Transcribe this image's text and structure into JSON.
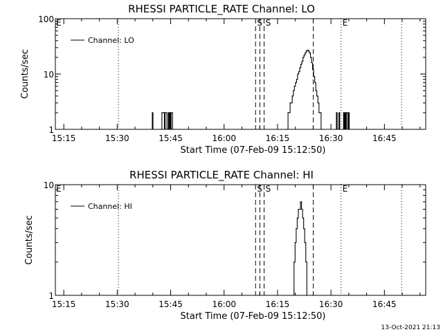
{
  "footer": {
    "timestamp": "13-Oct-2021 21:13"
  },
  "chart_data": [
    {
      "type": "line",
      "title": "RHESSI PARTICLE_RATE Channel: LO",
      "xlabel": "Start Time (07-Feb-09 15:12:50)",
      "ylabel": "Counts/sec",
      "yscale": "log",
      "ylim": [
        1,
        100
      ],
      "y_ticks": [
        {
          "value": 1,
          "label": "1"
        },
        {
          "value": 10,
          "label": "10"
        },
        {
          "value": 100,
          "label": "100"
        }
      ],
      "x_tick_labels": [
        "15:15",
        "15:30",
        "15:45",
        "16:00",
        "16:15",
        "16:30",
        "16:45"
      ],
      "legend": {
        "position": "top-left",
        "label": "Channel: LO"
      },
      "series": [
        {
          "name": "Channel: LO",
          "x_minutes_after_start": [
            26.8,
            27.0,
            27.2,
            27.4,
            29.5,
            29.7,
            29.9,
            30.2,
            30.4,
            30.6,
            30.9,
            31.1,
            31.3,
            31.5,
            31.7,
            31.9,
            32.1,
            32.3,
            32.5,
            32.7,
            33.0,
            33.2,
            64.5,
            64.8,
            65.1,
            65.4,
            65.7,
            66.0,
            66.3,
            66.6,
            66.9,
            67.2,
            67.5,
            67.8,
            68.1,
            68.4,
            68.7,
            69.0,
            69.3,
            69.6,
            69.9,
            70.2,
            70.5,
            70.8,
            71.1,
            71.4,
            71.7,
            72.0,
            72.3,
            72.6,
            72.9,
            73.2,
            73.5,
            73.8,
            74.1,
            74.4,
            74.7,
            75.0,
            78.5,
            78.7,
            78.9,
            79.2,
            79.4,
            79.6,
            80.5,
            80.7,
            80.9,
            81.1,
            81.3,
            81.5,
            81.7,
            81.9,
            82.1,
            82.3
          ],
          "values": [
            1,
            2,
            1,
            1,
            1,
            2,
            2,
            2,
            1,
            2,
            2,
            1,
            1,
            2,
            1,
            2,
            1,
            2,
            2,
            1,
            1,
            1,
            1,
            1,
            2,
            2,
            3,
            3,
            4,
            5,
            6,
            7,
            8,
            10,
            11,
            13,
            15,
            17,
            20,
            22,
            24,
            26,
            27,
            26,
            24,
            20,
            16,
            12,
            9,
            7,
            5,
            4,
            3,
            2,
            2,
            1,
            1,
            1,
            1,
            2,
            1,
            1,
            2,
            1,
            1,
            2,
            1,
            2,
            1,
            2,
            2,
            1,
            2,
            1
          ]
        }
      ],
      "vertical_lines": [
        {
          "x_minutes": 17.5,
          "style": "dotted",
          "label": ""
        },
        {
          "x_minutes": 56.0,
          "style": "dashed",
          "label": "S"
        },
        {
          "x_minutes": 57.2,
          "style": "dashed",
          "label": ""
        },
        {
          "x_minutes": 58.4,
          "style": "dashed",
          "label": "S"
        },
        {
          "x_minutes": 72.2,
          "style": "dashed",
          "label": ""
        },
        {
          "x_minutes": 80.0,
          "style": "dotted",
          "label": "E"
        },
        {
          "x_minutes": 97.0,
          "style": "dotted",
          "label": ""
        }
      ],
      "left_edge_label": "E"
    },
    {
      "type": "line",
      "title": "RHESSI PARTICLE_RATE Channel: HI",
      "xlabel": "Start Time (07-Feb-09 15:12:50)",
      "ylabel": "Counts/sec",
      "yscale": "log",
      "ylim": [
        1,
        10
      ],
      "y_ticks": [
        {
          "value": 1,
          "label": "1"
        },
        {
          "value": 10,
          "label": "10"
        }
      ],
      "x_tick_labels": [
        "15:15",
        "15:30",
        "15:45",
        "16:00",
        "16:15",
        "16:30",
        "16:45"
      ],
      "legend": {
        "position": "top-left",
        "label": "Channel: HI"
      },
      "series": [
        {
          "name": "Channel: HI",
          "x_minutes_after_start": [
            66.6,
            66.8,
            67.1,
            67.4,
            67.7,
            68.0,
            68.3,
            68.6,
            68.9,
            69.2,
            69.5,
            69.8,
            70.1,
            70.4
          ],
          "values": [
            1,
            2,
            3,
            4,
            5,
            6,
            6,
            7,
            6,
            5,
            4,
            3,
            2,
            1
          ]
        }
      ],
      "vertical_lines": [
        {
          "x_minutes": 17.5,
          "style": "dotted",
          "label": ""
        },
        {
          "x_minutes": 56.0,
          "style": "dashed",
          "label": "S"
        },
        {
          "x_minutes": 57.2,
          "style": "dashed",
          "label": ""
        },
        {
          "x_minutes": 58.4,
          "style": "dashed",
          "label": "S"
        },
        {
          "x_minutes": 72.2,
          "style": "dashed",
          "label": ""
        },
        {
          "x_minutes": 80.0,
          "style": "dotted",
          "label": "E"
        },
        {
          "x_minutes": 97.0,
          "style": "dotted",
          "label": ""
        }
      ],
      "left_edge_label": "E"
    }
  ]
}
